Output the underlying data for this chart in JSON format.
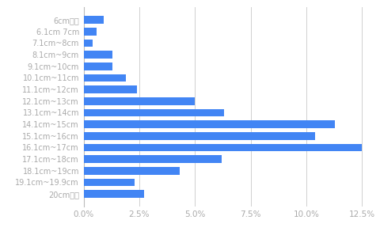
{
  "categories": [
    "6cm未満",
    "6.1cm 7cm",
    "7.1cm~8cm",
    "8.1cm~9cm",
    "9.1cm~10cm",
    "10.1cm~11cm",
    "11.1cm~12cm",
    "12.1cm~13cm",
    "13.1cm~14cm",
    "14.1cm~15cm",
    "15.1cm~16cm",
    "16.1cm~17cm",
    "17.1cm~18cm",
    "18.1cm~19cm",
    "19.1cm~19.9cm",
    "20cm以上"
  ],
  "values": [
    0.009,
    0.006,
    0.004,
    0.013,
    0.013,
    0.019,
    0.024,
    0.05,
    0.063,
    0.113,
    0.104,
    0.125,
    0.062,
    0.043,
    0.023,
    0.027
  ],
  "bar_color": "#4285F4",
  "background_color": "#ffffff",
  "grid_color": "#d0d0d0",
  "label_color": "#aaaaaa",
  "xlim": [
    0,
    0.128
  ],
  "xticks": [
    0.0,
    0.025,
    0.05,
    0.075,
    0.1,
    0.125
  ],
  "xtick_labels": [
    "0.0%",
    "2.5%",
    "5.0%",
    "7.5%",
    "10.0%",
    "12.5%"
  ]
}
